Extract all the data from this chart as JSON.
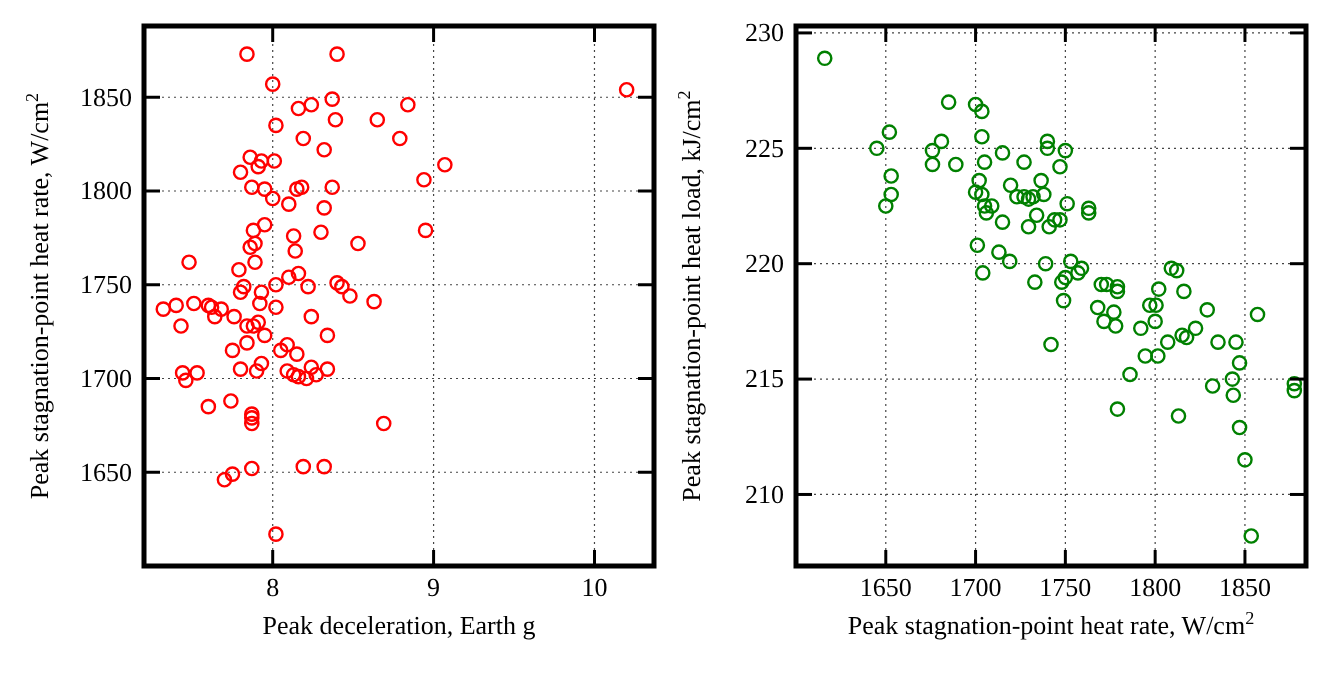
{
  "chart_data": [
    {
      "type": "scatter",
      "xlabel": "Peak deceleration, Earth g",
      "ylabel": "Peak stagnation-point heat rate, W/cm$^{2}$",
      "xlim": [
        7.2,
        10.37
      ],
      "ylim": [
        1600,
        1888
      ],
      "xticks": [
        8,
        9,
        10
      ],
      "yticks": [
        1650,
        1700,
        1750,
        1800,
        1850
      ],
      "grid": true,
      "marker": "circle",
      "series": [
        {
          "color": "#ff0000",
          "x": [
            7.84,
            8.4,
            8.0,
            10.2,
            8.16,
            8.24,
            8.37,
            8.84,
            8.02,
            8.39,
            8.65,
            8.19,
            8.79,
            8.32,
            7.86,
            7.93,
            8.01,
            7.91,
            7.8,
            9.07,
            8.94,
            7.87,
            7.95,
            8.15,
            8.18,
            8.37,
            8.0,
            8.1,
            8.32,
            7.88,
            7.95,
            8.3,
            8.13,
            8.95,
            7.86,
            7.89,
            8.14,
            8.53,
            7.48,
            7.89,
            7.79,
            8.16,
            8.1,
            7.82,
            7.8,
            7.93,
            8.02,
            8.22,
            8.4,
            8.43,
            8.48,
            8.63,
            7.92,
            8.02,
            7.32,
            7.4,
            7.51,
            7.6,
            7.62,
            7.68,
            7.76,
            7.64,
            7.91,
            7.88,
            7.84,
            7.43,
            8.24,
            7.95,
            8.34,
            7.84,
            8.09,
            7.75,
            8.05,
            8.15,
            7.93,
            7.8,
            7.9,
            8.09,
            8.13,
            8.16,
            8.21,
            8.27,
            8.24,
            8.34,
            7.44,
            7.46,
            7.53,
            7.6,
            7.74,
            7.87,
            7.87,
            7.87,
            8.69,
            7.7,
            7.75,
            7.87,
            8.19,
            8.32,
            8.02
          ],
          "values": [
            1873,
            1873,
            1857,
            1854,
            1844,
            1846,
            1849,
            1846,
            1835,
            1838,
            1838,
            1828,
            1828,
            1822,
            1818,
            1816,
            1816,
            1813,
            1810,
            1814,
            1806,
            1802,
            1801,
            1801,
            1802,
            1802,
            1796,
            1793,
            1791,
            1779,
            1782,
            1778,
            1776,
            1779,
            1770,
            1772,
            1768,
            1772,
            1762,
            1762,
            1758,
            1756,
            1754,
            1749,
            1746,
            1746,
            1750,
            1749,
            1751,
            1749,
            1744,
            1741,
            1740,
            1738,
            1737,
            1739,
            1740,
            1739,
            1738,
            1737,
            1733,
            1733,
            1730,
            1728,
            1728,
            1728,
            1733,
            1723,
            1723,
            1719,
            1718,
            1715,
            1715,
            1713,
            1708,
            1705,
            1704,
            1704,
            1702,
            1701,
            1700,
            1702,
            1706,
            1705,
            1703,
            1699,
            1703,
            1685,
            1688,
            1681,
            1679,
            1676,
            1676,
            1646,
            1649,
            1652,
            1653,
            1653,
            1617
          ]
        }
      ]
    },
    {
      "type": "scatter",
      "xlabel": "Peak stagnation-point heat rate, W/cm$^{2}$",
      "ylabel": "Peak stagnation-point heat load, kJ/cm$^{2}$",
      "xlim": [
        1600,
        1884
      ],
      "ylim": [
        206.9,
        230.3
      ],
      "xticks": [
        1650,
        1700,
        1750,
        1800,
        1850
      ],
      "yticks": [
        210,
        215,
        220,
        225,
        230
      ],
      "grid": true,
      "marker": "circle",
      "series": [
        {
          "color": "#008000",
          "x": [
            1616,
            1685,
            1700,
            1703.5,
            1652,
            1645,
            1681,
            1676,
            1676,
            1689,
            1703.5,
            1705,
            1715,
            1727,
            1740,
            1740,
            1750,
            1747,
            1653,
            1653,
            1650,
            1702,
            1700,
            1703.5,
            1705,
            1706,
            1709,
            1719.5,
            1723,
            1727,
            1729.5,
            1732,
            1736.5,
            1738,
            1734,
            1751,
            1763,
            1763,
            1715,
            1729.5,
            1741,
            1744,
            1747,
            1701,
            1713,
            1719,
            1704,
            1739,
            1753,
            1759,
            1757,
            1750,
            1748,
            1733,
            1749,
            1770,
            1773,
            1779,
            1779,
            1809,
            1812,
            1802,
            1816,
            1768,
            1777,
            1797,
            1800.5,
            1829,
            1857,
            1771.5,
            1778,
            1800,
            1792,
            1742,
            1794.5,
            1801.5,
            1807,
            1815,
            1817.5,
            1822.5,
            1835,
            1845,
            1847,
            1786,
            1832,
            1843,
            1843.5,
            1877.5,
            1877.5,
            1779,
            1813,
            1847,
            1850,
            1853.5
          ],
          "values": [
            228.9,
            227.0,
            226.9,
            226.6,
            225.7,
            225.0,
            225.3,
            224.9,
            224.3,
            224.3,
            225.5,
            224.4,
            224.8,
            224.4,
            225.3,
            225.0,
            224.9,
            224.2,
            223.8,
            223.0,
            222.5,
            223.6,
            223.1,
            223.0,
            222.5,
            222.2,
            222.5,
            223.4,
            222.9,
            222.9,
            222.8,
            222.9,
            223.6,
            223.0,
            222.1,
            222.6,
            222.4,
            222.2,
            221.8,
            221.6,
            221.6,
            221.9,
            221.9,
            220.8,
            220.5,
            220.1,
            219.6,
            220.0,
            220.1,
            219.8,
            219.6,
            219.4,
            219.2,
            219.2,
            218.4,
            219.1,
            219.1,
            219.0,
            218.8,
            219.8,
            219.7,
            218.9,
            218.8,
            218.1,
            217.9,
            218.2,
            218.2,
            218.0,
            217.8,
            217.5,
            217.3,
            217.5,
            217.2,
            216.5,
            216.0,
            216.0,
            216.6,
            216.9,
            216.8,
            217.2,
            216.6,
            216.6,
            215.7,
            215.2,
            214.7,
            215.0,
            214.3,
            214.8,
            214.5,
            213.7,
            213.4,
            212.9,
            211.5,
            208.2
          ]
        }
      ]
    }
  ]
}
